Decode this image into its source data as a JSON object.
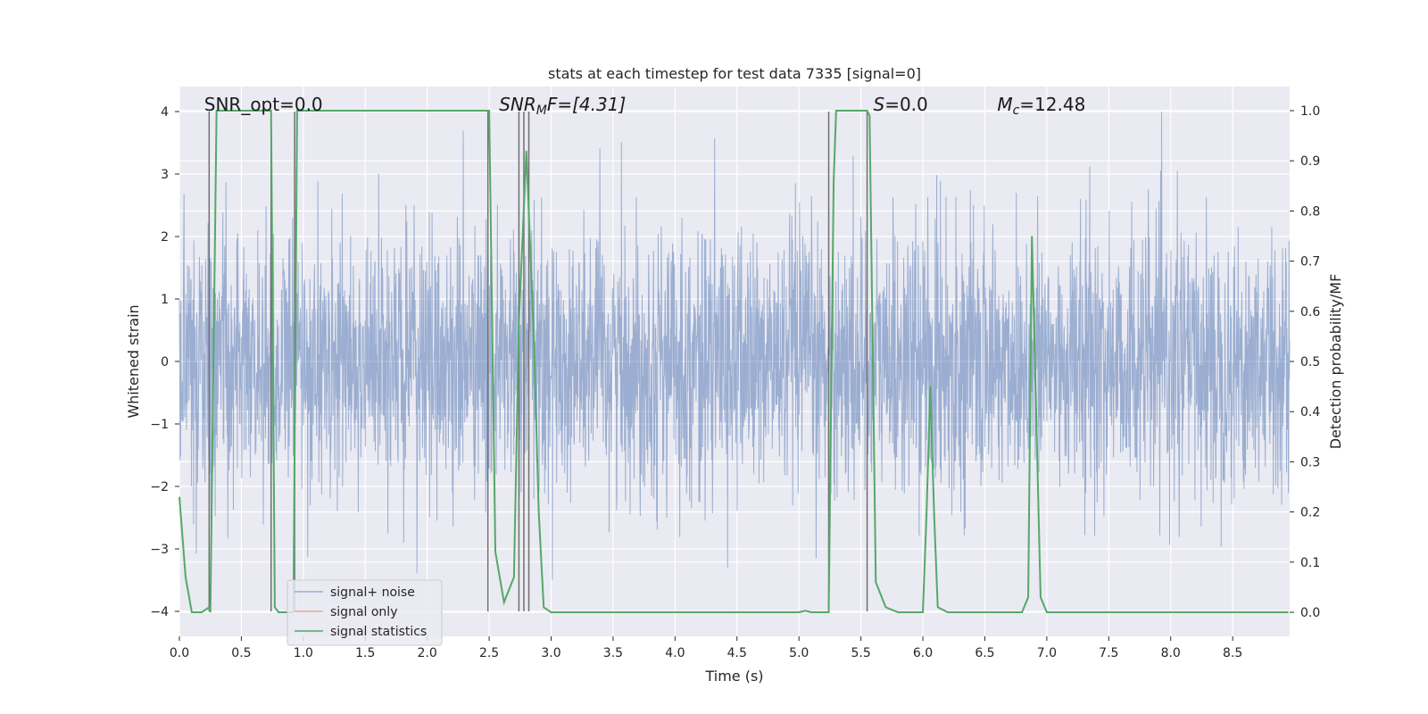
{
  "chart_data": {
    "type": "line",
    "title": "stats at each timestep for test data 7335 [signal=0]",
    "xlabel": "Time (s)",
    "ylabel_left": "Whitened strain",
    "ylabel_right": "Detection probability/MF",
    "xlim": [
      0,
      8.96
    ],
    "ylim_left": [
      -4.4,
      4.4
    ],
    "ylim_right": [
      -0.048,
      1.048
    ],
    "x_ticks": [
      "0.0",
      "0.5",
      "1.0",
      "1.5",
      "2.0",
      "2.5",
      "3.0",
      "3.5",
      "4.0",
      "4.5",
      "5.0",
      "5.5",
      "6.0",
      "6.5",
      "7.0",
      "7.5",
      "8.0",
      "8.5"
    ],
    "x_tick_values": [
      0,
      0.5,
      1.0,
      1.5,
      2.0,
      2.5,
      3.0,
      3.5,
      4.0,
      4.5,
      5.0,
      5.5,
      6.0,
      6.5,
      7.0,
      7.5,
      8.0,
      8.5
    ],
    "y_ticks_left": [
      "−4",
      "−3",
      "−2",
      "−1",
      "0",
      "1",
      "2",
      "3",
      "4"
    ],
    "y_tick_values_left": [
      -4,
      -3,
      -2,
      -1,
      0,
      1,
      2,
      3,
      4
    ],
    "y_ticks_right": [
      "0.0",
      "0.1",
      "0.2",
      "0.3",
      "0.4",
      "0.5",
      "0.6",
      "0.7",
      "0.8",
      "0.9",
      "1.0"
    ],
    "y_tick_values_right": [
      0,
      0.1,
      0.2,
      0.3,
      0.4,
      0.5,
      0.6,
      0.7,
      0.8,
      0.9,
      1.0
    ],
    "grid": true,
    "legend_position": "lower-left",
    "legend": [
      "signal+ noise",
      "signal only",
      "signal statistics"
    ],
    "annotations": [
      {
        "text": "SNR_opt=0.0",
        "x": 0.2
      },
      {
        "text": "SNR",
        "sub": "M",
        "rest": "F=[4.31]",
        "x": 2.58,
        "italic": true
      },
      {
        "text": "S",
        "rest": "=0.0",
        "x": 5.6,
        "italic": true
      },
      {
        "text": "M",
        "sub": "c",
        "rest": "=12.48",
        "x": 6.6,
        "italic": true
      }
    ],
    "series": [
      {
        "name": "signal+ noise",
        "color": "#4c72b0",
        "description": "whitened strain noise, approx. Gaussian, std ~1, range about -3.9 to 4.0",
        "time_range": [
          0,
          8.96
        ],
        "approx_range": [
          -3.9,
          4.0
        ]
      },
      {
        "name": "signal only",
        "color": "#dd8452",
        "values": []
      },
      {
        "name": "signal statistics",
        "color": "#55a868",
        "x": [
          0.0,
          0.05,
          0.1,
          0.15,
          0.18,
          0.24,
          0.25,
          0.3,
          0.72,
          0.74,
          0.77,
          0.8,
          0.92,
          0.95,
          0.98,
          2.48,
          2.5,
          2.55,
          2.62,
          2.7,
          2.74,
          2.8,
          2.86,
          2.9,
          2.94,
          3.0,
          5.0,
          5.05,
          5.1,
          5.15,
          5.24,
          5.28,
          5.3,
          5.5,
          5.55,
          5.57,
          5.62,
          5.7,
          5.8,
          6.0,
          6.03,
          6.06,
          6.09,
          6.12,
          6.2,
          6.3,
          6.7,
          6.8,
          6.85,
          6.88,
          6.95,
          7.0,
          7.1,
          8.95
        ],
        "y": [
          0.23,
          0.07,
          0.0,
          0.0,
          0.0,
          0.01,
          0.0,
          1.0,
          1.0,
          1.0,
          0.01,
          0.0,
          0.0,
          1.0,
          1.0,
          1.0,
          1.0,
          0.12,
          0.02,
          0.07,
          0.58,
          0.92,
          0.55,
          0.2,
          0.01,
          0.0,
          0.0,
          0.003,
          0.0,
          0.0,
          0.0,
          0.86,
          1.0,
          1.0,
          1.0,
          0.99,
          0.06,
          0.01,
          0.0,
          0.0,
          0.2,
          0.45,
          0.2,
          0.01,
          0.0,
          0.0,
          0.0,
          0.0,
          0.03,
          0.75,
          0.03,
          0.0,
          0.0,
          0.0
        ]
      }
    ],
    "vertical_markers": [
      0.24,
      0.74,
      0.93,
      2.49,
      2.74,
      2.78,
      2.82,
      5.24,
      5.55
    ],
    "vertical_marker_color": "#707070"
  }
}
